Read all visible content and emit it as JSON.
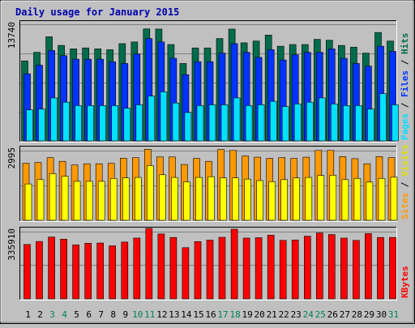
{
  "chart_data": {
    "type": "bar",
    "title": "Daily usage for January 2015",
    "categories": [
      "1",
      "2",
      "3",
      "4",
      "5",
      "6",
      "7",
      "8",
      "9",
      "10",
      "11",
      "12",
      "13",
      "14",
      "15",
      "16",
      "17",
      "18",
      "19",
      "20",
      "21",
      "22",
      "23",
      "24",
      "25",
      "26",
      "27",
      "28",
      "29",
      "30",
      "31"
    ],
    "weekend_categories": [
      "3",
      "4",
      "10",
      "11",
      "17",
      "18",
      "24",
      "25",
      "31"
    ],
    "panels": [
      {
        "name": "pages-files-hits",
        "ymax_label": "13740",
        "ylim": [
          0,
          13740
        ],
        "series": [
          {
            "name": "Hits",
            "color": "#006c4c",
            "values": [
              9300,
              10300,
              12100,
              11100,
              10700,
              10800,
              10700,
              10600,
              11300,
              11500,
              13020,
              13000,
              11200,
              9000,
              10800,
              10800,
              11900,
              13000,
              11400,
              11600,
              12300,
              11000,
              11200,
              11200,
              11800,
              11700,
              11100,
              10900,
              10200,
              12600,
              11600
            ]
          },
          {
            "name": "Files",
            "color": "#0033ff",
            "values": [
              7800,
              8800,
              10500,
              9900,
              9500,
              9500,
              9500,
              9200,
              9000,
              10100,
              11900,
              11500,
              9600,
              7700,
              9200,
              9200,
              10200,
              11300,
              10300,
              9700,
              10600,
              9400,
              10000,
              10300,
              10300,
              10700,
              9600,
              9000,
              8700,
              11000,
              10400
            ]
          },
          {
            "name": "Pages",
            "color": "#00e0ff",
            "values": [
              3600,
              3700,
              5000,
              4500,
              4100,
              4100,
              4100,
              4100,
              3800,
              4200,
              5200,
              5700,
              4400,
              3300,
              4100,
              4200,
              4200,
              5000,
              4100,
              4200,
              4600,
              4000,
              4300,
              4500,
              5000,
              4300,
              4100,
              4100,
              3700,
              5500,
              4200
            ]
          }
        ],
        "legend_labels": [
          "Pages",
          "Files",
          "Hits"
        ]
      },
      {
        "name": "sites-visits",
        "ymax_label": "2995",
        "ylim": [
          0,
          2995
        ],
        "series": [
          {
            "name": "Visits",
            "color": "#ff9900",
            "values": [
              2370,
              2400,
              2600,
              2450,
              2300,
              2350,
              2350,
              2370,
              2580,
              2600,
              2950,
              2630,
              2630,
              2320,
              2570,
              2450,
              2940,
              2900,
              2670,
              2620,
              2570,
              2600,
              2570,
              2620,
              2900,
              2900,
              2650,
              2560,
              2350,
              2650,
              2600
            ]
          },
          {
            "name": "Sites",
            "color": "#ffff00",
            "values": [
              1510,
              1690,
              1940,
              1830,
              1620,
              1620,
              1620,
              1740,
              1760,
              1780,
              2270,
              1890,
              1780,
              1600,
              1780,
              1810,
              1760,
              1760,
              1710,
              1650,
              1610,
              1690,
              1760,
              1780,
              1860,
              1870,
              1690,
              1740,
              1590,
              1740,
              1790
            ]
          }
        ],
        "legend_labels": [
          "Sites",
          "Visits"
        ]
      },
      {
        "name": "kbytes",
        "ymax_label": "335910",
        "ylim": [
          0,
          335910
        ],
        "series": [
          {
            "name": "KBytes",
            "color": "#ff0000",
            "values": [
              262000,
              277000,
              298000,
              288000,
              260000,
              268000,
              269000,
              256000,
              274000,
              293000,
              340000,
              313000,
              296000,
              247000,
              276000,
              283000,
              297000,
              336000,
              293000,
              295000,
              307000,
              282000,
              284000,
              302000,
              318000,
              310000,
              293000,
              282000,
              315000,
              296000,
              296000
            ]
          }
        ],
        "legend_labels": [
          "KBytes"
        ]
      }
    ],
    "grid": true,
    "legend": "right, vertical"
  }
}
